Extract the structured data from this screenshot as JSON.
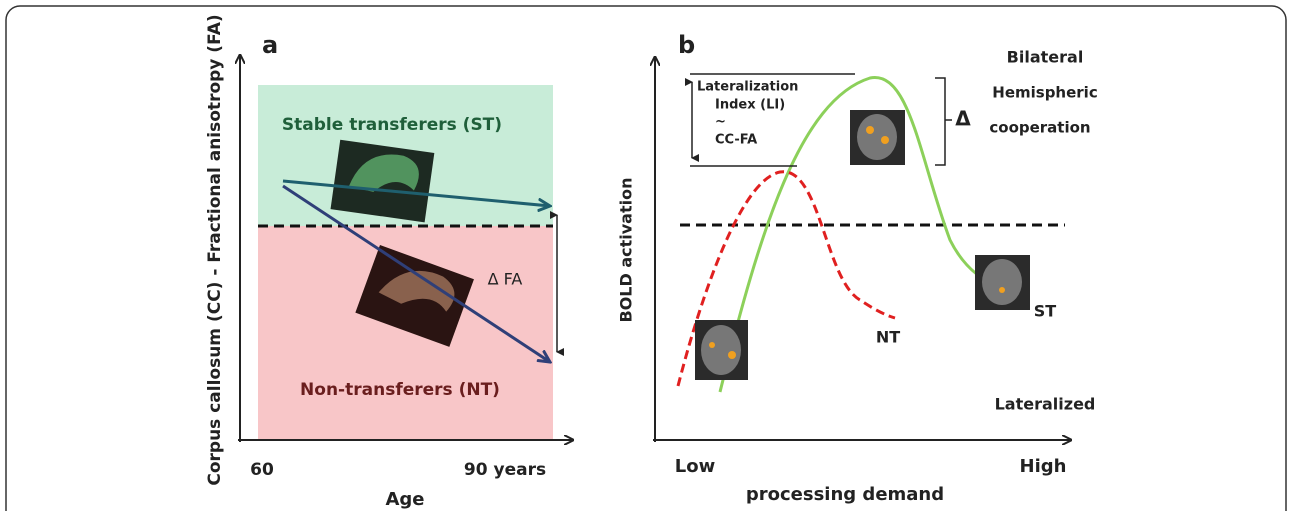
{
  "panel_a": {
    "label": "a",
    "y_axis_label": "Corpus callosum (CC) - Fractional anisotropy (FA)",
    "x_axis_label": "Age",
    "x_start": "60",
    "x_end": "90 years",
    "top_group": "Stable  transferers (ST)",
    "bottom_group": "Non-transferers (NT)",
    "delta": "Δ FA"
  },
  "panel_b": {
    "label": "b",
    "y_axis_label": "BOLD activation",
    "x_axis_label": "processing demand",
    "x_start": "Low",
    "x_end": "High",
    "top_label": "Bilateral",
    "bottom_label": "Lateralized",
    "li_lines": [
      "Lateralization",
      "Index (LI)",
      "~",
      "CC-FA"
    ],
    "delta": "Δ",
    "cooperation_lines": [
      "Hemispheric",
      "cooperation"
    ],
    "nt": "NT",
    "st": "ST"
  }
}
